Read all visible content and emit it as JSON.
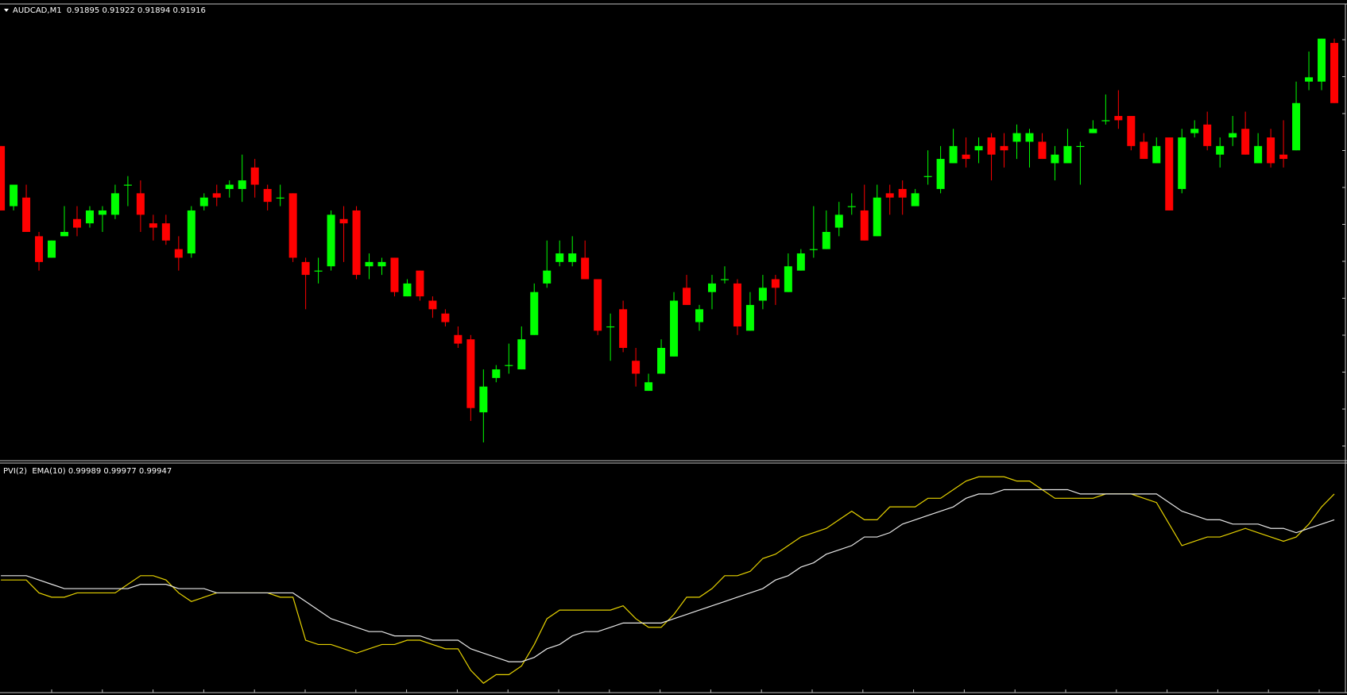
{
  "chart_data": [
    {
      "type": "candlestick",
      "title": "AUDCAD,M1  0.91895 0.91922 0.91894 0.91916",
      "up_color": "#00ff00",
      "down_color": "#ff0000",
      "ylim": [
        0.91893,
        0.91999
      ],
      "open": [
        0.91966,
        0.91952,
        0.91954,
        0.91945,
        0.9194,
        0.91945,
        0.91949,
        0.91948,
        0.9195,
        0.9195,
        0.91957,
        0.91955,
        0.91948,
        0.91948,
        0.91942,
        0.91941,
        0.91952,
        0.91955,
        0.91956,
        0.91956,
        0.91961,
        0.91956,
        0.91954,
        0.91955,
        0.91939,
        0.91937,
        0.91938,
        0.91949,
        0.91951,
        0.91938,
        0.91938,
        0.9194,
        0.91931,
        0.91937,
        0.9193,
        0.91927,
        0.91922,
        0.91921,
        0.91904,
        0.91912,
        0.91915,
        0.91914,
        0.91922,
        0.91934,
        0.91939,
        0.91939,
        0.9194,
        0.91935,
        0.91924,
        0.91928,
        0.91916,
        0.91909,
        0.91913,
        0.91917,
        0.91933,
        0.91925,
        0.91932,
        0.91935,
        0.91934,
        0.91923,
        0.9193,
        0.91935,
        0.91932,
        0.91937,
        0.91942,
        0.91942,
        0.91947,
        0.91952,
        0.91951,
        0.91945,
        0.91955,
        0.91956,
        0.91952,
        0.91959,
        0.91956,
        0.91962,
        0.91964,
        0.91965,
        0.91968,
        0.91966,
        0.91967,
        0.91967,
        0.91967,
        0.91962,
        0.91962,
        0.91966,
        0.91969,
        0.91972,
        0.91973,
        0.91973,
        0.91967,
        0.91962,
        0.91968,
        0.91956,
        0.91969,
        0.91971,
        0.91964,
        0.91968,
        0.9197,
        0.91962,
        0.91968,
        0.91964,
        0.91965,
        0.91981,
        0.91981,
        0.9199
      ],
      "high": [
        0.91966,
        0.91957,
        0.91957,
        0.91946,
        0.91944,
        0.91952,
        0.91952,
        0.91952,
        0.91952,
        0.91957,
        0.91959,
        0.91958,
        0.9195,
        0.9195,
        0.91945,
        0.91952,
        0.91955,
        0.91957,
        0.91958,
        0.91964,
        0.91963,
        0.91957,
        0.91957,
        0.91955,
        0.9194,
        0.9194,
        0.91951,
        0.91952,
        0.91952,
        0.91941,
        0.9194,
        0.9194,
        0.91935,
        0.91937,
        0.91931,
        0.91928,
        0.91924,
        0.91922,
        0.91914,
        0.91915,
        0.9192,
        0.91924,
        0.91934,
        0.91944,
        0.91944,
        0.91945,
        0.91944,
        0.91935,
        0.91927,
        0.9193,
        0.91919,
        0.91913,
        0.91921,
        0.91932,
        0.91936,
        0.91929,
        0.91936,
        0.91938,
        0.91935,
        0.91932,
        0.91936,
        0.91936,
        0.91941,
        0.91942,
        0.91952,
        0.91951,
        0.91953,
        0.91955,
        0.91957,
        0.91957,
        0.91957,
        0.91958,
        0.91956,
        0.91965,
        0.91966,
        0.9197,
        0.91968,
        0.91968,
        0.91969,
        0.91969,
        0.91971,
        0.9197,
        0.91969,
        0.91966,
        0.9197,
        0.91967,
        0.91972,
        0.91978,
        0.91979,
        0.91973,
        0.91969,
        0.91968,
        0.91968,
        0.9197,
        0.91972,
        0.91974,
        0.91968,
        0.91973,
        0.91974,
        0.91969,
        0.9197,
        0.91972,
        0.91981,
        0.91988,
        0.91991,
        0.91991
      ],
      "low": [
        0.91951,
        0.91951,
        0.91946,
        0.91937,
        0.9194,
        0.91945,
        0.91945,
        0.91947,
        0.91946,
        0.91949,
        0.91952,
        0.91946,
        0.91944,
        0.91943,
        0.91937,
        0.9194,
        0.91951,
        0.91952,
        0.91954,
        0.91953,
        0.91954,
        0.91951,
        0.91952,
        0.91939,
        0.91928,
        0.91934,
        0.91937,
        0.91939,
        0.91935,
        0.91935,
        0.91936,
        0.91931,
        0.91931,
        0.9193,
        0.91926,
        0.91924,
        0.91919,
        0.91902,
        0.91897,
        0.91911,
        0.91913,
        0.91914,
        0.91922,
        0.91933,
        0.91938,
        0.91938,
        0.91935,
        0.91922,
        0.91916,
        0.91918,
        0.9191,
        0.91909,
        0.91913,
        0.91917,
        0.91929,
        0.91923,
        0.91928,
        0.91934,
        0.91922,
        0.91923,
        0.91928,
        0.91929,
        0.91932,
        0.91937,
        0.9194,
        0.91942,
        0.91945,
        0.9195,
        0.91944,
        0.91945,
        0.9195,
        0.9195,
        0.91952,
        0.91957,
        0.91955,
        0.91962,
        0.91961,
        0.91962,
        0.91958,
        0.91961,
        0.91963,
        0.91961,
        0.91963,
        0.91958,
        0.91962,
        0.91957,
        0.91969,
        0.91971,
        0.9197,
        0.91965,
        0.91963,
        0.91962,
        0.91951,
        0.91955,
        0.91968,
        0.91965,
        0.91961,
        0.91966,
        0.91964,
        0.91962,
        0.91961,
        0.91961,
        0.91965,
        0.91979,
        0.91979,
        0.91976
      ],
      "close": [
        0.91951,
        0.91957,
        0.91946,
        0.91939,
        0.91944,
        0.91946,
        0.91947,
        0.91951,
        0.91951,
        0.91955,
        0.91957,
        0.9195,
        0.91947,
        0.91944,
        0.9194,
        0.91951,
        0.91954,
        0.91954,
        0.91957,
        0.91958,
        0.91957,
        0.91953,
        0.91954,
        0.9194,
        0.91936,
        0.91937,
        0.9195,
        0.91948,
        0.91936,
        0.91939,
        0.91939,
        0.91932,
        0.91934,
        0.91931,
        0.91928,
        0.91925,
        0.9192,
        0.91905,
        0.9191,
        0.91914,
        0.91915,
        0.91921,
        0.91932,
        0.91937,
        0.91941,
        0.91941,
        0.91935,
        0.91923,
        0.91924,
        0.91919,
        0.91913,
        0.91911,
        0.91919,
        0.9193,
        0.91929,
        0.91928,
        0.91934,
        0.91935,
        0.91924,
        0.91929,
        0.91933,
        0.91933,
        0.91938,
        0.91941,
        0.91942,
        0.91946,
        0.9195,
        0.91952,
        0.91944,
        0.91954,
        0.91954,
        0.91954,
        0.91955,
        0.91959,
        0.91963,
        0.91966,
        0.91963,
        0.91966,
        0.91964,
        0.91965,
        0.91969,
        0.91969,
        0.91963,
        0.91964,
        0.91966,
        0.91966,
        0.9197,
        0.91972,
        0.91972,
        0.91966,
        0.91963,
        0.91966,
        0.91951,
        0.91968,
        0.9197,
        0.91966,
        0.91966,
        0.91969,
        0.91964,
        0.91966,
        0.91962,
        0.91963,
        0.91976,
        0.91982,
        0.91991,
        0.91976
      ]
    },
    {
      "type": "line",
      "title": "PVI(2)  EMA(10) 0.99989 0.99977 0.99947",
      "ylim": [
        0.99939,
        0.99992
      ],
      "series": [
        {
          "color": "#e6d200",
          "values": [
            0.99965,
            0.99965,
            0.99965,
            0.99962,
            0.99961,
            0.99961,
            0.99962,
            0.99962,
            0.99962,
            0.99962,
            0.99964,
            0.99966,
            0.99966,
            0.99965,
            0.99962,
            0.9996,
            0.99961,
            0.99962,
            0.99962,
            0.99962,
            0.99962,
            0.99962,
            0.99961,
            0.99961,
            0.99951,
            0.9995,
            0.9995,
            0.99949,
            0.99948,
            0.99949,
            0.9995,
            0.9995,
            0.99951,
            0.99951,
            0.9995,
            0.99949,
            0.99949,
            0.99944,
            0.99941,
            0.99943,
            0.99943,
            0.99945,
            0.9995,
            0.99956,
            0.99958,
            0.99958,
            0.99958,
            0.99958,
            0.99958,
            0.99959,
            0.99956,
            0.99954,
            0.99954,
            0.99957,
            0.99961,
            0.99961,
            0.99963,
            0.99966,
            0.99966,
            0.99967,
            0.9997,
            0.99971,
            0.99973,
            0.99975,
            0.99976,
            0.99977,
            0.99979,
            0.99981,
            0.99979,
            0.99979,
            0.99982,
            0.99982,
            0.99982,
            0.99984,
            0.99984,
            0.99986,
            0.99988,
            0.99989,
            0.99989,
            0.99989,
            0.99988,
            0.99988,
            0.99986,
            0.99984,
            0.99984,
            0.99984,
            0.99984,
            0.99985,
            0.99985,
            0.99985,
            0.99984,
            0.99983,
            0.99978,
            0.99973,
            0.99974,
            0.99975,
            0.99975,
            0.99976,
            0.99977,
            0.99976,
            0.99975,
            0.99974,
            0.99975,
            0.99978,
            0.99982,
            0.99985
          ]
        },
        {
          "color": "#e8e8e8",
          "values": [
            0.99966,
            0.99966,
            0.99966,
            0.99965,
            0.99964,
            0.99963,
            0.99963,
            0.99963,
            0.99963,
            0.99963,
            0.99963,
            0.99964,
            0.99964,
            0.99964,
            0.99963,
            0.99963,
            0.99963,
            0.99962,
            0.99962,
            0.99962,
            0.99962,
            0.99962,
            0.99962,
            0.99962,
            0.9996,
            0.99958,
            0.99956,
            0.99955,
            0.99954,
            0.99953,
            0.99953,
            0.99952,
            0.99952,
            0.99952,
            0.99951,
            0.99951,
            0.99951,
            0.99949,
            0.99948,
            0.99947,
            0.99946,
            0.99946,
            0.99947,
            0.99949,
            0.9995,
            0.99952,
            0.99953,
            0.99953,
            0.99954,
            0.99955,
            0.99955,
            0.99955,
            0.99955,
            0.99956,
            0.99957,
            0.99958,
            0.99959,
            0.9996,
            0.99961,
            0.99962,
            0.99963,
            0.99965,
            0.99966,
            0.99968,
            0.99969,
            0.99971,
            0.99972,
            0.99973,
            0.99975,
            0.99975,
            0.99976,
            0.99978,
            0.99979,
            0.9998,
            0.99981,
            0.99982,
            0.99984,
            0.99985,
            0.99985,
            0.99986,
            0.99986,
            0.99986,
            0.99986,
            0.99986,
            0.99986,
            0.99985,
            0.99985,
            0.99985,
            0.99985,
            0.99985,
            0.99985,
            0.99985,
            0.99983,
            0.99981,
            0.9998,
            0.99979,
            0.99979,
            0.99978,
            0.99978,
            0.99978,
            0.99977,
            0.99977,
            0.99976,
            0.99977,
            0.99978,
            0.99979
          ]
        }
      ]
    }
  ]
}
